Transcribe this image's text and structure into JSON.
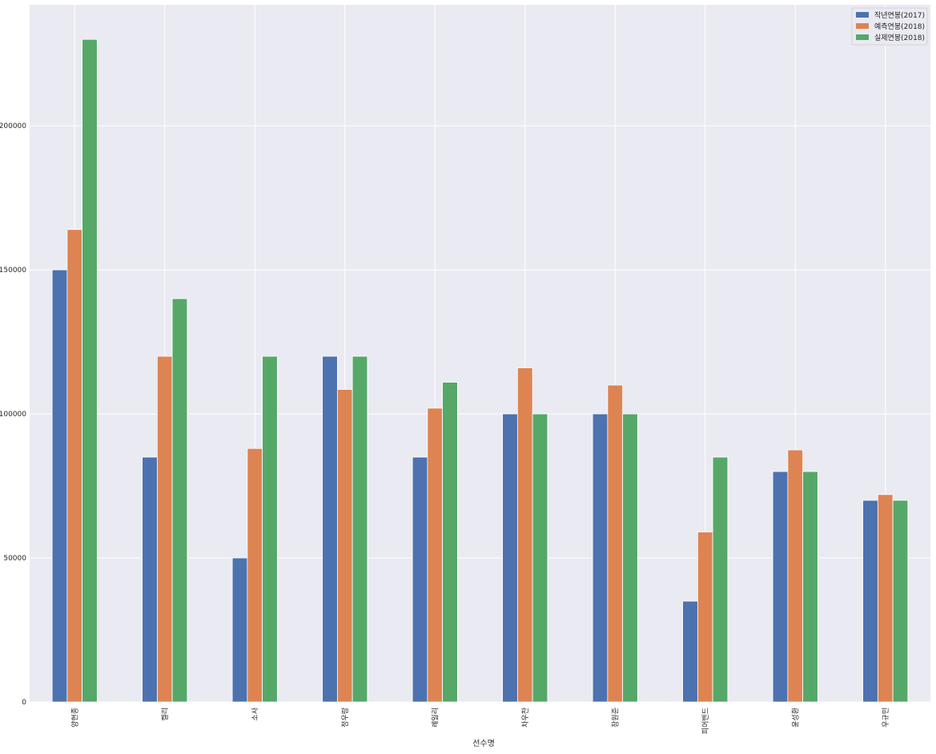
{
  "chart_data": {
    "type": "bar",
    "categories": [
      "양현종",
      "켈리",
      "소사",
      "정우람",
      "레일리",
      "차우찬",
      "장원준",
      "피어밴드",
      "윤성환",
      "우규민"
    ],
    "series": [
      {
        "name": "작년연봉(2017)",
        "color": "#4c72b0",
        "values": [
          150000,
          85000,
          50000,
          120000,
          85000,
          100000,
          100000,
          35000,
          80000,
          70000
        ]
      },
      {
        "name": "예측연봉(2018)",
        "color": "#dd8452",
        "values": [
          164000,
          120000,
          88000,
          108500,
          102000,
          116000,
          110000,
          59000,
          87500,
          72000
        ]
      },
      {
        "name": "실제연봉(2018)",
        "color": "#55a868",
        "values": [
          230000,
          140000,
          120000,
          120000,
          111000,
          100000,
          100000,
          85000,
          80000,
          70000
        ]
      }
    ],
    "xlabel": "선수명",
    "ylabel": "",
    "ylim": [
      0,
      242000
    ],
    "yticks": [
      0,
      50000,
      100000,
      150000,
      200000
    ],
    "grid": true,
    "legend_position": "top-right",
    "background": "#eaeaf2"
  }
}
